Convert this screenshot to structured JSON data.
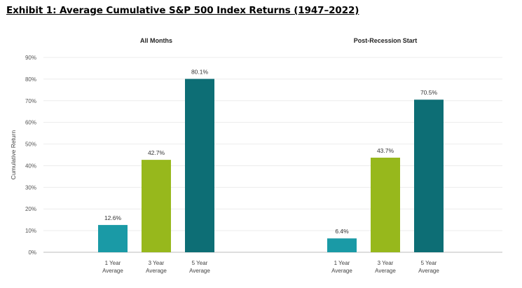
{
  "exhibit_title": "Exhibit 1: Average Cumulative S&P 500 Index Returns (1947–2022)",
  "chart_data": {
    "type": "bar",
    "ylabel": "Cumulative Return",
    "ylim": [
      0,
      90
    ],
    "y_ticks": [
      "0%",
      "10%",
      "20%",
      "30%",
      "40%",
      "50%",
      "60%",
      "70%",
      "80%",
      "90%"
    ],
    "grid": true,
    "categories": [
      [
        "1 Year",
        "Average"
      ],
      [
        "3 Year",
        "Average"
      ],
      [
        "5 Year",
        "Average"
      ]
    ],
    "colors": [
      "#1a9aa6",
      "#97b81c",
      "#0d6e75"
    ],
    "panels": [
      {
        "title": "All Months",
        "values": [
          12.6,
          42.7,
          80.1
        ],
        "labels": [
          "12.6%",
          "42.7%",
          "80.1%"
        ]
      },
      {
        "title": "Post-Recession Start",
        "values": [
          6.4,
          43.7,
          70.5
        ],
        "labels": [
          "6.4%",
          "43.7%",
          "70.5%"
        ]
      }
    ]
  }
}
